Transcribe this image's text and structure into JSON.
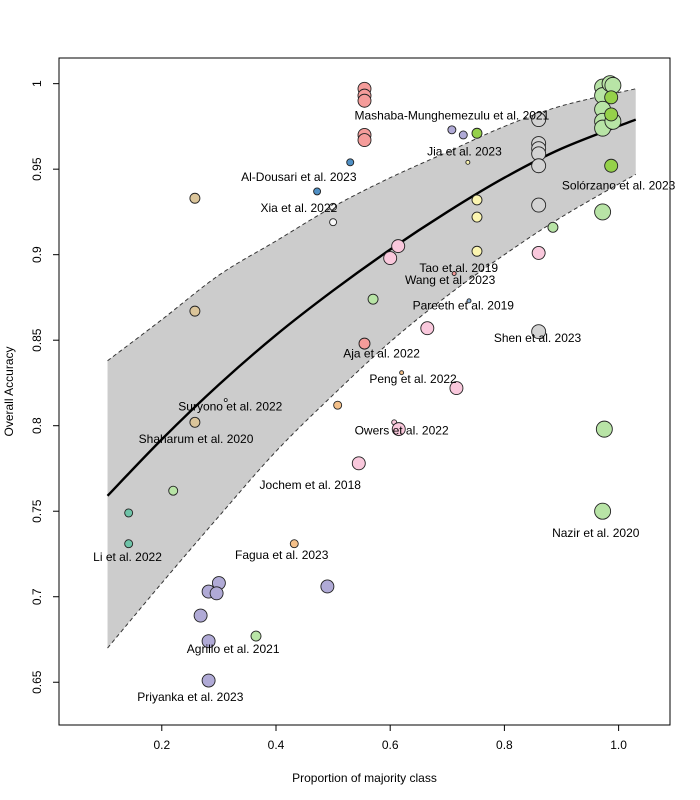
{
  "chart_data": {
    "type": "scatter",
    "xlabel": "Proportion of majority class",
    "ylabel": "Overall Accuracy",
    "xlim": [
      0.02,
      1.09
    ],
    "ylim": [
      0.625,
      1.015
    ],
    "xticks": [
      0.2,
      0.4,
      0.6,
      0.8,
      1.0
    ],
    "xtick_labels": [
      "0.2",
      "0.4",
      "0.6",
      "0.8",
      "1.0"
    ],
    "yticks": [
      0.65,
      0.7,
      0.75,
      0.8,
      0.85,
      0.9,
      0.95,
      1.0
    ],
    "ytick_labels": [
      "0.65",
      "0.7",
      "0.75",
      "0.8",
      "0.85",
      "0.9",
      "0.95",
      "1"
    ],
    "grid": false,
    "colors": {
      "purple": "#b0aad6",
      "red": "#f59c9a",
      "grey": "#d3d3d3",
      "green_light": "#b8e4a6",
      "green": "#95d14a",
      "pink": "#f9c8dc",
      "yellow": "#fbf5b0",
      "tan": "#dbc59a",
      "orange": "#f4c089",
      "teal": "#6fc3a8",
      "blue": "#4f8fc4",
      "lightblue": "#8fb3d7",
      "white": "#f8f8f8",
      "band": "#cccccc"
    },
    "fit_line": {
      "x": [
        0.105,
        0.2,
        0.3,
        0.4,
        0.5,
        0.6,
        0.7,
        0.8,
        0.9,
        1.03
      ],
      "y": [
        0.759,
        0.792,
        0.824,
        0.853,
        0.879,
        0.903,
        0.925,
        0.945,
        0.962,
        0.979
      ],
      "ci_lower": [
        0.67,
        0.708,
        0.747,
        0.785,
        0.818,
        0.849,
        0.876,
        0.9,
        0.922,
        0.947
      ],
      "ci_upper": [
        0.838,
        0.862,
        0.888,
        0.908,
        0.928,
        0.945,
        0.96,
        0.975,
        0.987,
        0.997
      ]
    },
    "points": [
      {
        "x": 0.555,
        "y": 0.997,
        "r": 6.5,
        "c": "red"
      },
      {
        "x": 0.555,
        "y": 0.993,
        "r": 6.5,
        "c": "red"
      },
      {
        "x": 0.555,
        "y": 0.99,
        "r": 6.5,
        "c": "red"
      },
      {
        "x": 0.555,
        "y": 0.97,
        "r": 6.5,
        "c": "red"
      },
      {
        "x": 0.555,
        "y": 0.967,
        "r": 6.5,
        "c": "red"
      },
      {
        "x": 0.53,
        "y": 0.954,
        "r": 3.5,
        "c": "blue"
      },
      {
        "x": 0.472,
        "y": 0.937,
        "r": 3.5,
        "c": "blue"
      },
      {
        "x": 0.5,
        "y": 0.928,
        "r": 3.5,
        "c": "white"
      },
      {
        "x": 0.5,
        "y": 0.919,
        "r": 3.5,
        "c": "white"
      },
      {
        "x": 0.708,
        "y": 0.973,
        "r": 4,
        "c": "purple"
      },
      {
        "x": 0.728,
        "y": 0.97,
        "r": 4,
        "c": "purple"
      },
      {
        "x": 0.752,
        "y": 0.971,
        "r": 5,
        "c": "green"
      },
      {
        "x": 0.736,
        "y": 0.954,
        "r": 2,
        "c": "yellow"
      },
      {
        "x": 0.752,
        "y": 0.932,
        "r": 5,
        "c": "yellow"
      },
      {
        "x": 0.752,
        "y": 0.922,
        "r": 5,
        "c": "yellow"
      },
      {
        "x": 0.752,
        "y": 0.902,
        "r": 5,
        "c": "yellow"
      },
      {
        "x": 0.86,
        "y": 0.979,
        "r": 7,
        "c": "grey"
      },
      {
        "x": 0.86,
        "y": 0.965,
        "r": 7,
        "c": "grey"
      },
      {
        "x": 0.86,
        "y": 0.962,
        "r": 7,
        "c": "grey"
      },
      {
        "x": 0.86,
        "y": 0.959,
        "r": 7,
        "c": "grey"
      },
      {
        "x": 0.86,
        "y": 0.952,
        "r": 7,
        "c": "grey"
      },
      {
        "x": 0.86,
        "y": 0.929,
        "r": 7,
        "c": "grey"
      },
      {
        "x": 0.86,
        "y": 0.855,
        "r": 7,
        "c": "grey"
      },
      {
        "x": 0.885,
        "y": 0.916,
        "r": 5,
        "c": "green_light"
      },
      {
        "x": 0.86,
        "y": 0.901,
        "r": 6.5,
        "c": "pink"
      },
      {
        "x": 0.972,
        "y": 0.998,
        "r": 8,
        "c": "green_light"
      },
      {
        "x": 0.972,
        "y": 0.993,
        "r": 8,
        "c": "green_light"
      },
      {
        "x": 0.972,
        "y": 0.985,
        "r": 8,
        "c": "green_light"
      },
      {
        "x": 0.972,
        "y": 0.978,
        "r": 8,
        "c": "green_light"
      },
      {
        "x": 0.972,
        "y": 0.974,
        "r": 8,
        "c": "green_light"
      },
      {
        "x": 0.985,
        "y": 1.0,
        "r": 8,
        "c": "green_light"
      },
      {
        "x": 0.99,
        "y": 0.999,
        "r": 8,
        "c": "green_light"
      },
      {
        "x": 0.99,
        "y": 0.978,
        "r": 8,
        "c": "green_light"
      },
      {
        "x": 0.987,
        "y": 0.992,
        "r": 6.5,
        "c": "green"
      },
      {
        "x": 0.987,
        "y": 0.982,
        "r": 6.5,
        "c": "green"
      },
      {
        "x": 0.987,
        "y": 0.952,
        "r": 6.5,
        "c": "green"
      },
      {
        "x": 0.972,
        "y": 0.925,
        "r": 8,
        "c": "green_light"
      },
      {
        "x": 0.975,
        "y": 0.798,
        "r": 8,
        "c": "green_light"
      },
      {
        "x": 0.972,
        "y": 0.75,
        "r": 8,
        "c": "green_light"
      },
      {
        "x": 0.614,
        "y": 0.905,
        "r": 6.5,
        "c": "pink"
      },
      {
        "x": 0.6,
        "y": 0.898,
        "r": 6.5,
        "c": "pink"
      },
      {
        "x": 0.57,
        "y": 0.874,
        "r": 5,
        "c": "green_light"
      },
      {
        "x": 0.712,
        "y": 0.889,
        "r": 2,
        "c": "red"
      },
      {
        "x": 0.738,
        "y": 0.873,
        "r": 2,
        "c": "lightblue"
      },
      {
        "x": 0.665,
        "y": 0.857,
        "r": 6.5,
        "c": "pink"
      },
      {
        "x": 0.555,
        "y": 0.848,
        "r": 5.5,
        "c": "red"
      },
      {
        "x": 0.62,
        "y": 0.831,
        "r": 2,
        "c": "orange"
      },
      {
        "x": 0.716,
        "y": 0.822,
        "r": 6.5,
        "c": "pink"
      },
      {
        "x": 0.508,
        "y": 0.812,
        "r": 4,
        "c": "orange"
      },
      {
        "x": 0.607,
        "y": 0.802,
        "r": 2.5,
        "c": "pink"
      },
      {
        "x": 0.615,
        "y": 0.798,
        "r": 6.5,
        "c": "pink"
      },
      {
        "x": 0.545,
        "y": 0.778,
        "r": 6.5,
        "c": "pink"
      },
      {
        "x": 0.312,
        "y": 0.815,
        "r": 1.5,
        "c": "white"
      },
      {
        "x": 0.258,
        "y": 0.933,
        "r": 5,
        "c": "tan"
      },
      {
        "x": 0.258,
        "y": 0.867,
        "r": 5,
        "c": "tan"
      },
      {
        "x": 0.258,
        "y": 0.802,
        "r": 5,
        "c": "tan"
      },
      {
        "x": 0.22,
        "y": 0.762,
        "r": 4.5,
        "c": "green_light"
      },
      {
        "x": 0.142,
        "y": 0.749,
        "r": 4,
        "c": "teal"
      },
      {
        "x": 0.142,
        "y": 0.731,
        "r": 4,
        "c": "teal"
      },
      {
        "x": 0.432,
        "y": 0.731,
        "r": 4,
        "c": "orange"
      },
      {
        "x": 0.3,
        "y": 0.708,
        "r": 6.5,
        "c": "purple"
      },
      {
        "x": 0.282,
        "y": 0.703,
        "r": 6.5,
        "c": "purple"
      },
      {
        "x": 0.296,
        "y": 0.702,
        "r": 6.5,
        "c": "purple"
      },
      {
        "x": 0.49,
        "y": 0.706,
        "r": 6.5,
        "c": "purple"
      },
      {
        "x": 0.268,
        "y": 0.689,
        "r": 6.5,
        "c": "purple"
      },
      {
        "x": 0.282,
        "y": 0.674,
        "r": 6.5,
        "c": "purple"
      },
      {
        "x": 0.365,
        "y": 0.677,
        "r": 5,
        "c": "green_light"
      },
      {
        "x": 0.282,
        "y": 0.651,
        "r": 6.5,
        "c": "purple"
      }
    ],
    "annotations": [
      {
        "text": "Mashaba-Munghemezulu et al. 2021",
        "x": 0.708,
        "y": 0.979
      },
      {
        "text": "Jia et al. 2023",
        "x": 0.73,
        "y": 0.958
      },
      {
        "text": "Al-Dousari et al. 2023",
        "x": 0.44,
        "y": 0.943
      },
      {
        "text": "Solórzano et al. 2023",
        "x": 1.0,
        "y": 0.938
      },
      {
        "text": "Xia et al. 2022",
        "x": 0.44,
        "y": 0.925
      },
      {
        "text": "Tao et al. 2019",
        "x": 0.72,
        "y": 0.89
      },
      {
        "text": "Wang et al. 2023",
        "x": 0.705,
        "y": 0.883
      },
      {
        "text": "Pareeth et al. 2019",
        "x": 0.728,
        "y": 0.868
      },
      {
        "text": "Shen et al. 2023",
        "x": 0.858,
        "y": 0.849
      },
      {
        "text": "Aja et al. 2022",
        "x": 0.585,
        "y": 0.84
      },
      {
        "text": "Peng et al. 2022",
        "x": 0.64,
        "y": 0.825
      },
      {
        "text": "Suryono et al. 2022",
        "x": 0.32,
        "y": 0.809
      },
      {
        "text": "Shaharum et al. 2020",
        "x": 0.26,
        "y": 0.79
      },
      {
        "text": "Owers et al. 2022",
        "x": 0.62,
        "y": 0.795
      },
      {
        "text": "Jochem et al. 2018",
        "x": 0.46,
        "y": 0.763
      },
      {
        "text": "Nazir et al. 2020",
        "x": 0.96,
        "y": 0.735
      },
      {
        "text": "Li et al. 2022",
        "x": 0.14,
        "y": 0.721
      },
      {
        "text": "Fagua et al. 2023",
        "x": 0.41,
        "y": 0.722
      },
      {
        "text": "Agrillo et al. 2021",
        "x": 0.325,
        "y": 0.667
      },
      {
        "text": "Priyanka et al. 2023",
        "x": 0.25,
        "y": 0.639
      }
    ]
  }
}
